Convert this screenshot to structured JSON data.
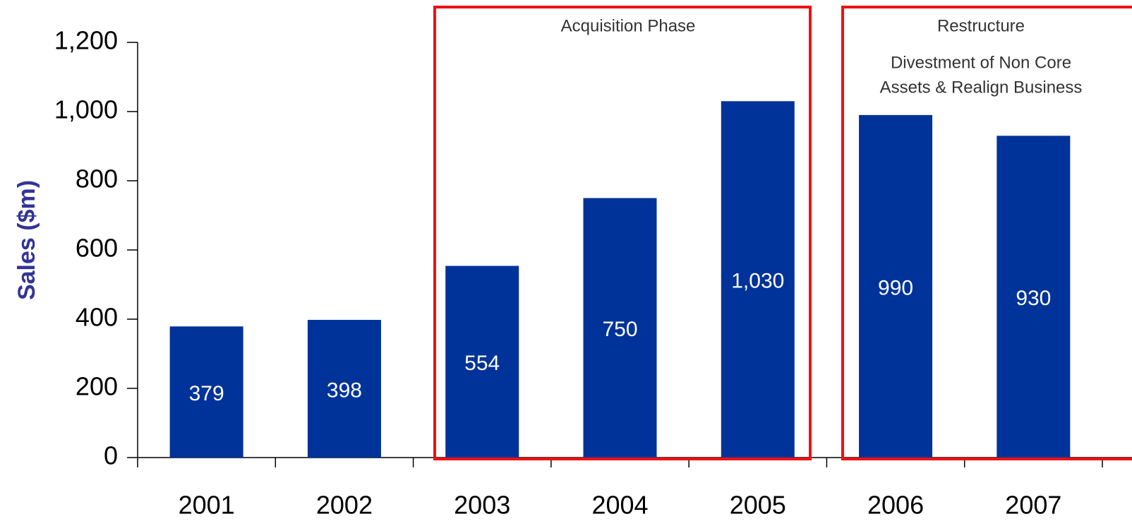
{
  "chart_data": {
    "type": "bar",
    "y_label": "Sales ($m)",
    "categories": [
      "2001",
      "2002",
      "2003",
      "2004",
      "2005",
      "2006",
      "2007"
    ],
    "values": [
      379,
      398,
      554,
      750,
      1030,
      990,
      930
    ],
    "value_labels": [
      "379",
      "398",
      "554",
      "750",
      "1,030",
      "990",
      "930"
    ],
    "color": "#003399",
    "ylim": [
      0,
      1200
    ],
    "yticks": [
      0,
      200,
      400,
      600,
      800,
      {
        "value": 1000,
        "label": "1,000"
      },
      {
        "value": 1200,
        "label": "1,200"
      }
    ],
    "grid": false,
    "annotations": [
      {
        "title": "Acquisition Phase"
      },
      {
        "title": "Restructure",
        "text": [
          "Divestment of Non Core",
          "Assets & Realign Business"
        ]
      }
    ]
  }
}
